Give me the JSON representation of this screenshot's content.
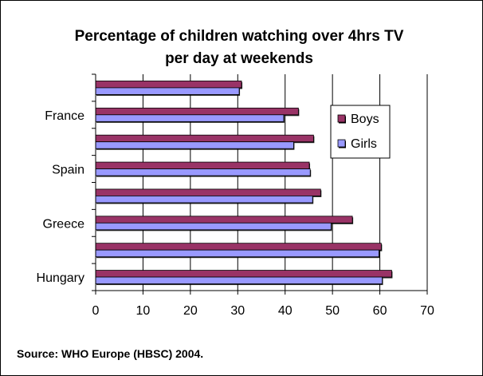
{
  "chart_data": {
    "type": "bar",
    "orientation": "horizontal",
    "title": "Percentage of children watching over 4hrs TV per day at weekends",
    "title_lines": [
      "Percentage of children watching over 4hrs TV",
      "per day at weekends"
    ],
    "categories": [
      "Hungary",
      "",
      "Greece",
      "",
      "Spain",
      "",
      "France",
      ""
    ],
    "series": [
      {
        "name": "Boys",
        "color": "#993366",
        "values": [
          62.5,
          60.3,
          54.2,
          47.5,
          45.1,
          46.0,
          42.8,
          30.8
        ]
      },
      {
        "name": "Girls",
        "color": "#9999FF",
        "values": [
          60.5,
          59.8,
          49.7,
          45.8,
          45.3,
          41.8,
          39.7,
          30.3
        ]
      }
    ],
    "x_ticks": [
      0,
      10,
      20,
      30,
      40,
      50,
      60,
      70
    ],
    "xlim": [
      0,
      70
    ],
    "xlabel": "",
    "ylabel": "",
    "grid": "vertical",
    "legend_position": "right"
  },
  "source": "Source: WHO Europe (HBSC) 2004."
}
